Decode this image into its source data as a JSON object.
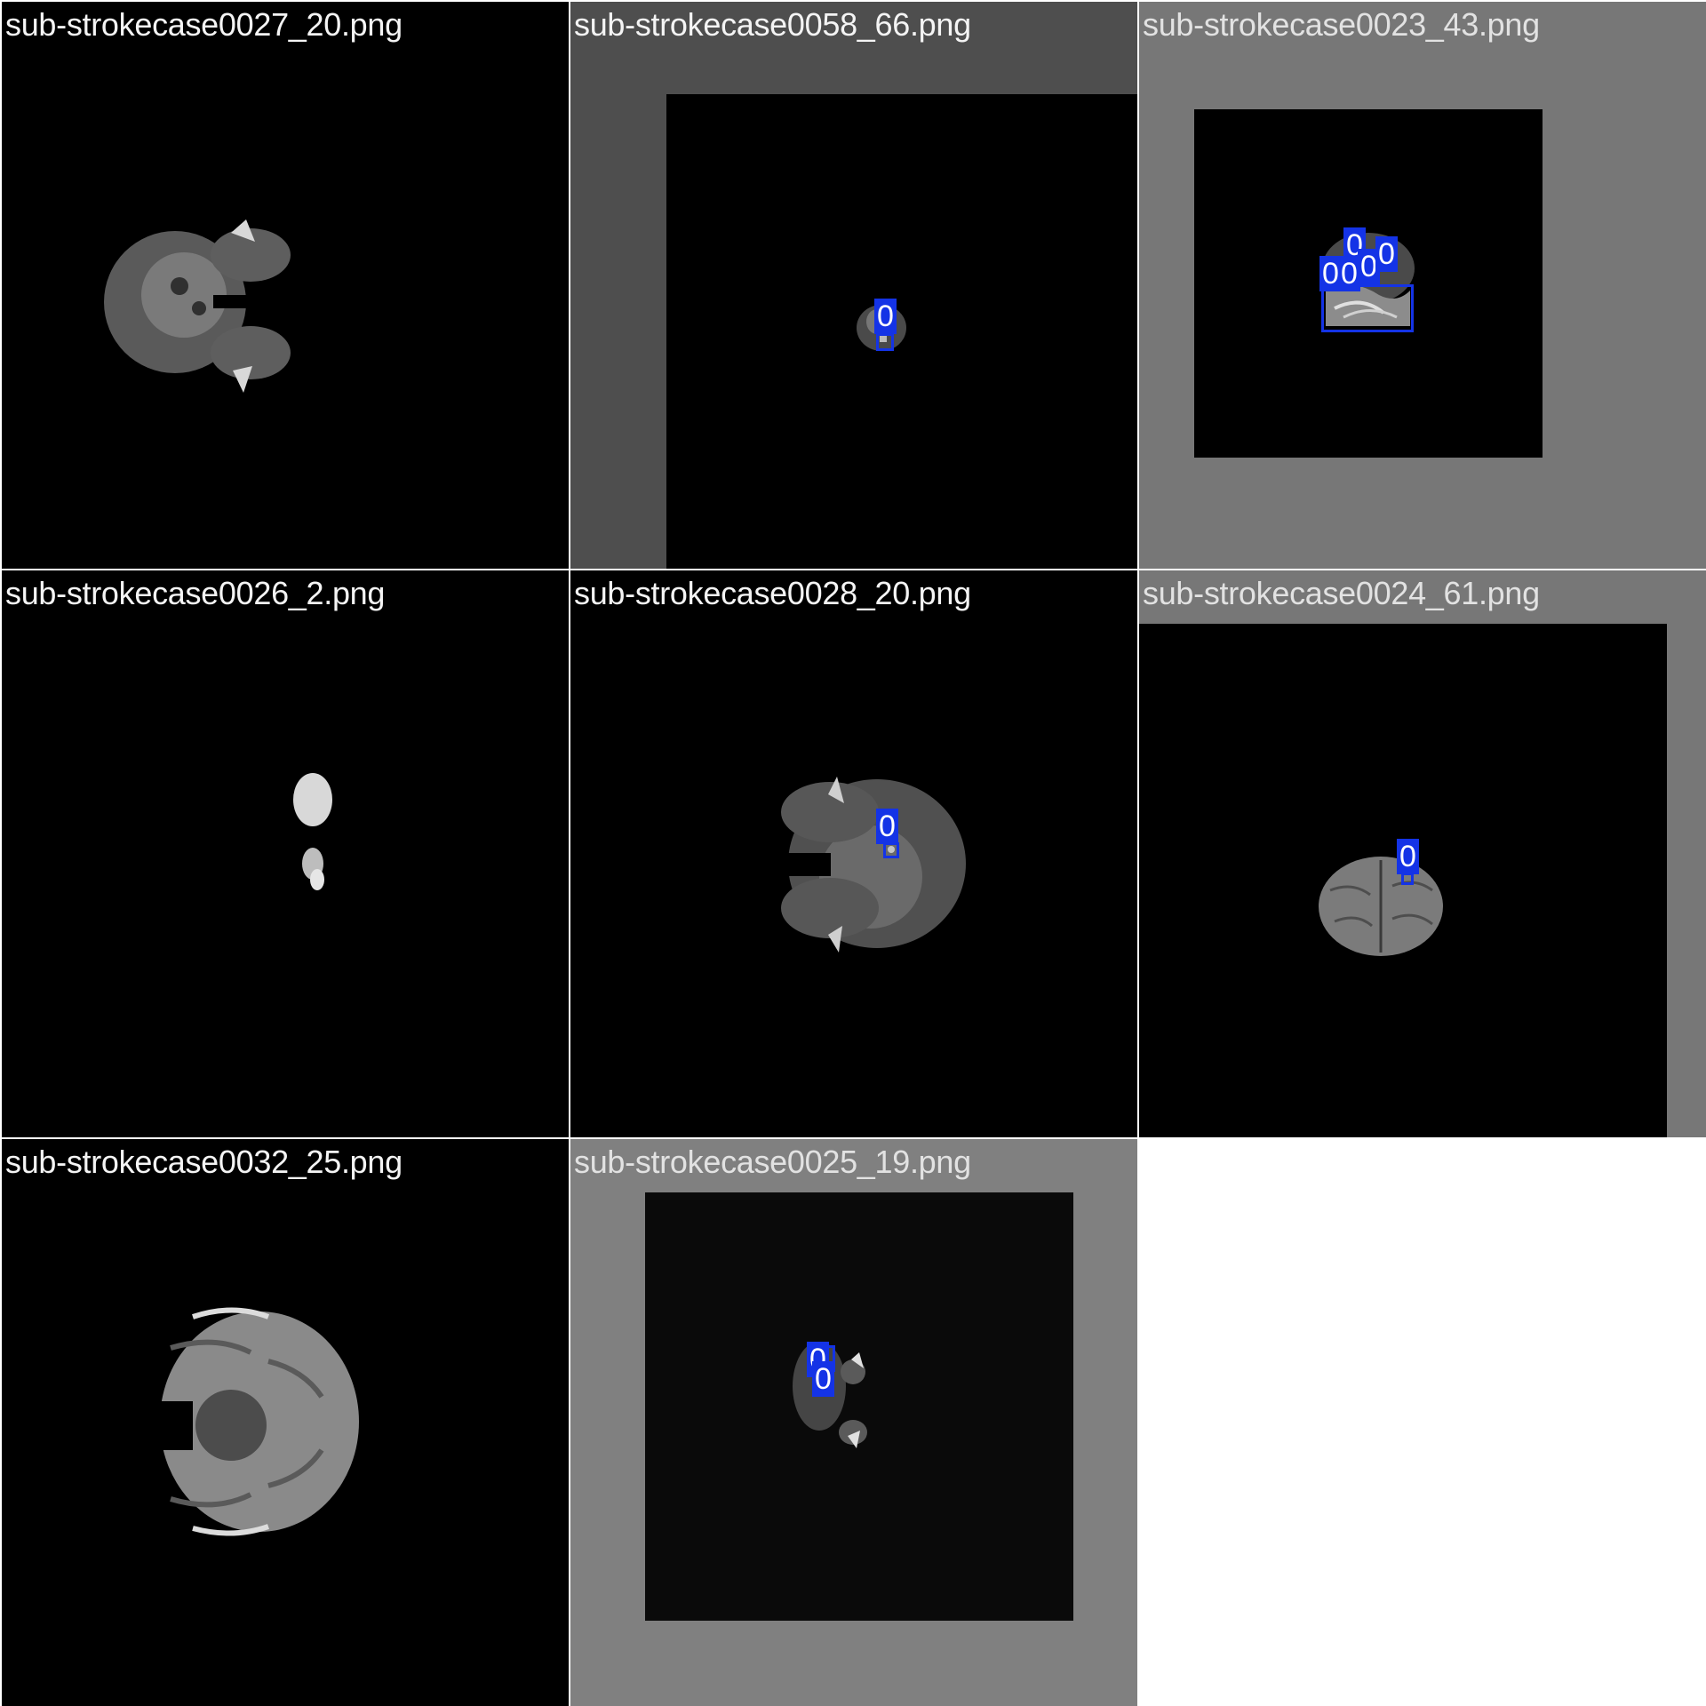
{
  "tiles": [
    {
      "filename": "sub-strokecase0027_20.png",
      "detections": []
    },
    {
      "filename": "sub-strokecase0058_66.png",
      "detections": [
        {
          "class_label": "0"
        }
      ]
    },
    {
      "filename": "sub-strokecase0023_43.png",
      "detections": [
        {
          "class_label": "0"
        },
        {
          "class_label": "0"
        },
        {
          "class_label": "0"
        },
        {
          "class_label": "0"
        },
        {
          "class_label": "0"
        }
      ]
    },
    {
      "filename": "sub-strokecase0026_2.png",
      "detections": []
    },
    {
      "filename": "sub-strokecase0028_20.png",
      "detections": [
        {
          "class_label": "0"
        }
      ]
    },
    {
      "filename": "sub-strokecase0024_61.png",
      "detections": [
        {
          "class_label": "0"
        }
      ]
    },
    {
      "filename": "sub-strokecase0032_25.png",
      "detections": []
    },
    {
      "filename": "sub-strokecase0025_19.png",
      "detections": [
        {
          "class_label": "0"
        },
        {
          "class_label": "0"
        }
      ]
    }
  ],
  "colors": {
    "detection_box": "#1433e6",
    "label_text": "#ffffff",
    "grid_background": "#ffffff"
  }
}
